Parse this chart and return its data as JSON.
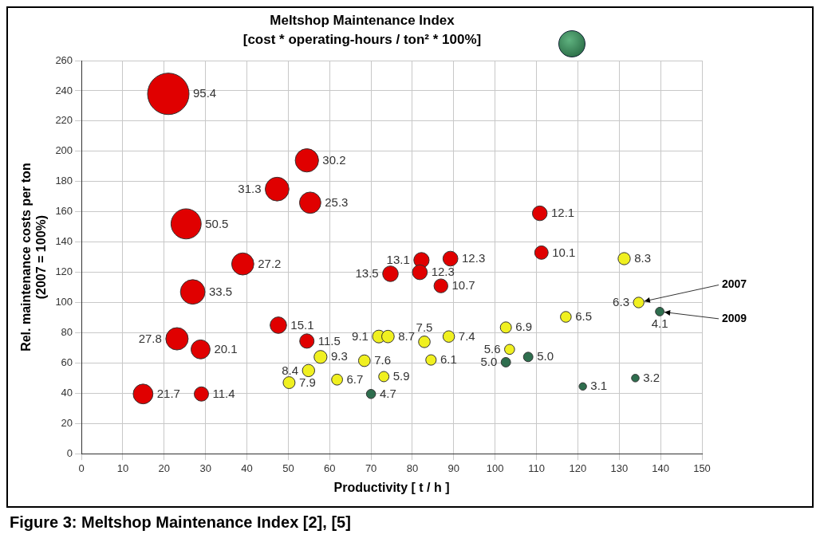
{
  "chart_data": {
    "type": "bubble",
    "title": "Meltshop Maintenance Index",
    "subtitle": "[cost * operating-hours / ton² * 100%]",
    "xlabel": "Productivity [ t / h ]",
    "ylabel": "Rel. maintenance costs per ton\n(2007 = 100%)",
    "xlim": [
      0,
      150
    ],
    "xticks": [
      0,
      10,
      20,
      30,
      40,
      50,
      60,
      70,
      80,
      90,
      100,
      110,
      120,
      130,
      140,
      150
    ],
    "ylim": [
      0,
      260
    ],
    "yticks": [
      0,
      20,
      40,
      60,
      80,
      100,
      120,
      140,
      160,
      180,
      200,
      220,
      240,
      260
    ],
    "grid": true,
    "legend": false,
    "series": [
      {
        "color": "#e00000",
        "x": [
          21,
          25.3,
          47.3,
          54.5,
          55.3,
          39,
          26.9,
          23.1,
          28.8,
          14.9,
          29,
          47.6,
          54.5,
          74.7,
          82.2,
          89.2,
          81.8,
          86.9,
          110.8,
          111.2
        ],
        "values": [
          238,
          152,
          175,
          194,
          166,
          125.5,
          107,
          76,
          69,
          39.5,
          39.5,
          85,
          74.5,
          119,
          128,
          129,
          120,
          111,
          159,
          133
        ],
        "sizes": [
          95.4,
          50.5,
          31.3,
          30.2,
          25.3,
          27.2,
          33.5,
          27.8,
          20.1,
          21.7,
          11.4,
          15.1,
          11.5,
          13.5,
          13.1,
          12.3,
          12.3,
          10.7,
          12.1,
          10.1
        ],
        "value_labels": [
          "95.4",
          "50.5",
          "31.3",
          "30.2",
          "25.3",
          "27.2",
          "33.5",
          "27.8",
          "20.1",
          "21.7",
          "11.4",
          "15.1",
          "11.5",
          "13.5",
          "13.1",
          "12.3",
          "12.3",
          "10.7",
          "12.1",
          "10.1"
        ]
      },
      {
        "color": "#f0f020",
        "x": [
          57.8,
          54.9,
          50.2,
          61.8,
          68.4,
          71.9,
          74.1,
          73.1,
          82.9,
          88.8,
          84.5,
          102.6,
          103.5,
          117.1,
          131.2,
          134.7
        ],
        "values": [
          64,
          55,
          47,
          49,
          61.5,
          77.5,
          77.5,
          51,
          74,
          77.5,
          62,
          83.5,
          69,
          90.5,
          129,
          100
        ],
        "sizes": [
          9.3,
          8.4,
          7.9,
          6.7,
          7.6,
          9.1,
          8.7,
          5.9,
          7.5,
          7.4,
          6.1,
          6.9,
          5.6,
          6.5,
          8.3,
          6.3
        ],
        "value_labels": [
          "9.3",
          "8.4",
          "7.9",
          "6.7",
          "7.6",
          "9.1",
          "8.7",
          "5.9",
          "7.5",
          "7.4",
          "6.1",
          "6.9",
          "5.6",
          "6.5",
          "8.3",
          "6.3"
        ]
      },
      {
        "color": "#2e6e4e",
        "x": [
          70,
          102.6,
          108,
          121.2,
          133.9,
          139.8
        ],
        "values": [
          39.5,
          60.5,
          64,
          44.5,
          50,
          94
        ],
        "sizes": [
          4.7,
          5.0,
          5.0,
          3.1,
          3.2,
          4.1
        ],
        "value_labels": [
          "4.7",
          "5.0",
          "5.0",
          "3.1",
          "3.2",
          "4.1"
        ]
      }
    ],
    "annotations": [
      {
        "text": "2007",
        "x": 134.7,
        "y": 100
      },
      {
        "text": "2009",
        "x": 139.8,
        "y": 94
      },
      "Figure 3: Meltshop Maintenance Index [2], [5]"
    ]
  }
}
